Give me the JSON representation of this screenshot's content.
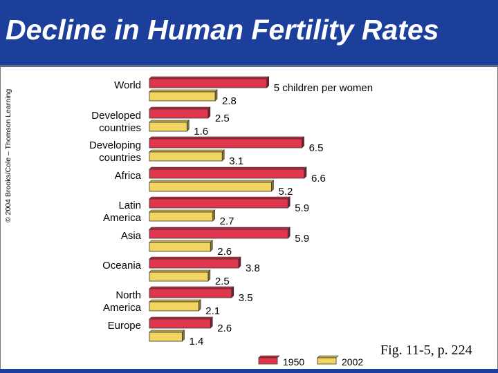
{
  "slide": {
    "title": "Decline in Human Fertility Rates",
    "copyright": "© 2004 Brooks/Cole – Thomson Learning",
    "figure_caption": "Fig. 11-5, p. 224"
  },
  "colors": {
    "header": "#1d3f9c",
    "series_1950": "#e0374e",
    "series_2002": "#f2d560"
  },
  "chart_data": {
    "type": "bar",
    "orientation": "horizontal",
    "title": "",
    "xlabel": "",
    "ylabel": "",
    "categories": [
      [
        "World"
      ],
      [
        "Developed",
        "countries"
      ],
      [
        "Developing",
        "countries"
      ],
      [
        "Africa"
      ],
      [
        "Latin",
        "America"
      ],
      [
        "Asia"
      ],
      [
        "Oceania"
      ],
      [
        "North",
        "America"
      ],
      [
        "Europe"
      ]
    ],
    "series": [
      {
        "name": "1950",
        "values": [
          5,
          2.5,
          6.5,
          6.6,
          5.9,
          5.9,
          3.8,
          3.5,
          2.6
        ]
      },
      {
        "name": "2002",
        "values": [
          2.8,
          1.6,
          3.1,
          5.2,
          2.7,
          2.6,
          2.5,
          2.1,
          1.4
        ]
      }
    ],
    "value_labels": [
      [
        "5 children per women",
        "2.5",
        "6.5",
        "6.6",
        "5.9",
        "5.9",
        "3.8",
        "3.5",
        "2.6"
      ],
      [
        "2.8",
        "1.6",
        "3.1",
        "5.2",
        "2.7",
        "2.6",
        "2.5",
        "2.1",
        "1.4"
      ]
    ],
    "xlim": [
      0,
      6.6
    ],
    "grid": false,
    "legend": "bottom-right"
  }
}
